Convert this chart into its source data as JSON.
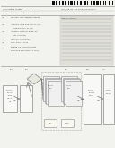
{
  "bg_color": "#f2f2ee",
  "barcode_color": "#111111",
  "text_color": "#444444",
  "light_gray": "#bbbbbb",
  "line_color": "#777777",
  "box_fill": "#ffffff",
  "box_edge": "#888888",
  "diamond_fill": "#e8e8e0",
  "abstract_fill": "#e0e0d8",
  "header_sep_color": "#999999"
}
